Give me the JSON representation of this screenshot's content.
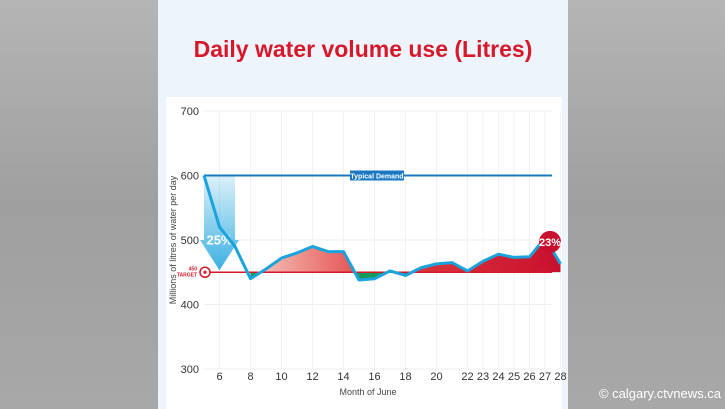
{
  "watermark": "calgary.ctvnews.ca",
  "chart_data": {
    "type": "line",
    "title": "Daily water volume use (Litres)",
    "xlabel": "Month of June",
    "ylabel": "Millions of litres of water per day",
    "ylim": [
      300,
      700
    ],
    "yticks": [
      300,
      400,
      500,
      600,
      700
    ],
    "xticks": [
      6,
      8,
      10,
      12,
      14,
      16,
      18,
      20,
      22,
      23,
      24,
      25,
      26,
      27,
      28
    ],
    "x": [
      5,
      6,
      7,
      8,
      9,
      10,
      11,
      12,
      13,
      14,
      15,
      16,
      17,
      18,
      19,
      20,
      21,
      22,
      23,
      24,
      25,
      26,
      27,
      28
    ],
    "values": [
      600,
      520,
      490,
      440,
      455,
      472,
      480,
      490,
      482,
      482,
      438,
      440,
      452,
      445,
      457,
      463,
      465,
      452,
      467,
      478,
      473,
      474,
      503,
      463
    ],
    "typical_demand": {
      "label": "Typical Demand",
      "value": 600
    },
    "target": {
      "label": "450 TARGET",
      "value": 450
    },
    "annotations": [
      "25%",
      "23%"
    ],
    "colors": {
      "line": "#1aa3dc",
      "demand": "#1a78c2",
      "target": "#d7182a",
      "above": "#d7182a",
      "below": "#1a9a5a"
    },
    "grid": true
  }
}
